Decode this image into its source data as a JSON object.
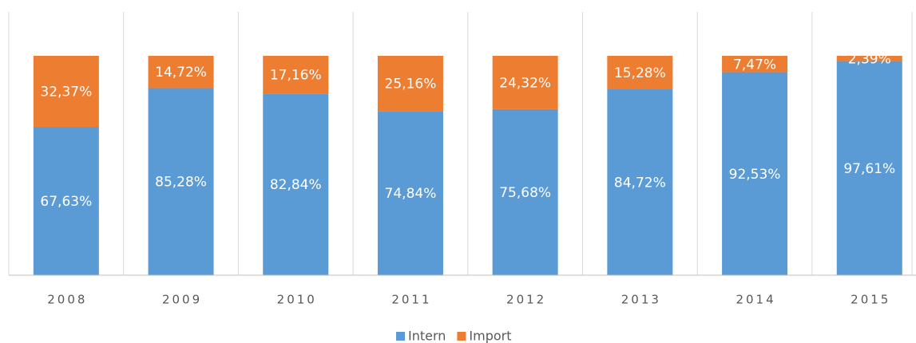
{
  "chart_data": {
    "type": "bar",
    "stacked": true,
    "categories": [
      "2008",
      "2009",
      "2010",
      "2011",
      "2012",
      "2013",
      "2014",
      "2015"
    ],
    "series": [
      {
        "name": "Intern",
        "color": "#5b9bd5",
        "values": [
          67.63,
          85.28,
          82.84,
          74.84,
          75.68,
          84.72,
          92.53,
          97.61
        ],
        "value_labels": [
          "67,63%",
          "85,28%",
          "82,84%",
          "74,84%",
          "75,68%",
          "84,72%",
          "92,53%",
          "97,61%"
        ]
      },
      {
        "name": "Import",
        "color": "#ed7d31",
        "values": [
          32.37,
          14.72,
          17.16,
          25.16,
          24.32,
          15.28,
          7.47,
          2.39
        ],
        "value_labels": [
          "32,37%",
          "14,72%",
          "17,16%",
          "25,16%",
          "24,32%",
          "15,28%",
          "7,47%",
          "2,39%"
        ]
      }
    ],
    "ylim": [
      0,
      100
    ],
    "legend": "bottom"
  }
}
